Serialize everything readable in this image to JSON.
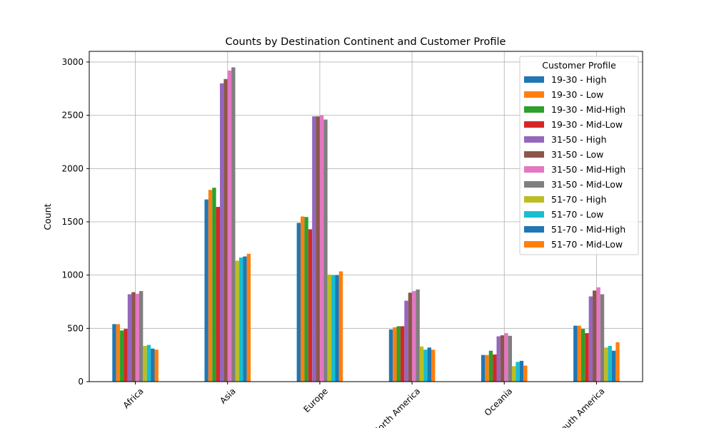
{
  "chart_data": {
    "type": "bar",
    "title": "Counts by Destination Continent and Customer Profile",
    "xlabel": "",
    "ylabel": "Count",
    "ylim": [
      0,
      3100
    ],
    "yticks": [
      0,
      500,
      1000,
      1500,
      2000,
      2500,
      3000
    ],
    "grid": true,
    "legend_title": "Customer Profile",
    "legend_position": "top-right",
    "categories": [
      "Africa",
      "Asia",
      "Europe",
      "North America",
      "Oceania",
      "South America"
    ],
    "series": [
      {
        "name": "19-30 - High",
        "color": "#1f77b4",
        "values": [
          540,
          1710,
          1490,
          490,
          250,
          525
        ]
      },
      {
        "name": "19-30 - Low",
        "color": "#ff7f0e",
        "values": [
          540,
          1800,
          1550,
          510,
          250,
          525
        ]
      },
      {
        "name": "19-30 - Mid-High",
        "color": "#2ca02c",
        "values": [
          480,
          1820,
          1545,
          520,
          290,
          495
        ]
      },
      {
        "name": "19-30 - Mid-Low",
        "color": "#d62728",
        "values": [
          495,
          1640,
          1430,
          520,
          255,
          455
        ]
      },
      {
        "name": "31-50 - High",
        "color": "#9467bd",
        "values": [
          820,
          2800,
          2490,
          760,
          425,
          800
        ]
      },
      {
        "name": "31-50 - Low",
        "color": "#8c564b",
        "values": [
          840,
          2840,
          2490,
          835,
          435,
          855
        ]
      },
      {
        "name": "31-50 - Mid-High",
        "color": "#e377c2",
        "values": [
          825,
          2920,
          2500,
          850,
          455,
          885
        ]
      },
      {
        "name": "31-50 - Mid-Low",
        "color": "#7f7f7f",
        "values": [
          850,
          2950,
          2460,
          865,
          430,
          820
        ]
      },
      {
        "name": "51-70 - High",
        "color": "#bcbd22",
        "values": [
          335,
          1135,
          1005,
          330,
          145,
          320
        ]
      },
      {
        "name": "51-70 - Low",
        "color": "#17becf",
        "values": [
          345,
          1165,
          1000,
          300,
          185,
          335
        ]
      },
      {
        "name": "51-70 - Mid-High",
        "color": "#1f77b4",
        "values": [
          310,
          1175,
          1000,
          320,
          195,
          290
        ]
      },
      {
        "name": "51-70 - Mid-Low",
        "color": "#ff7f0e",
        "values": [
          300,
          1200,
          1035,
          300,
          150,
          370
        ]
      }
    ]
  }
}
